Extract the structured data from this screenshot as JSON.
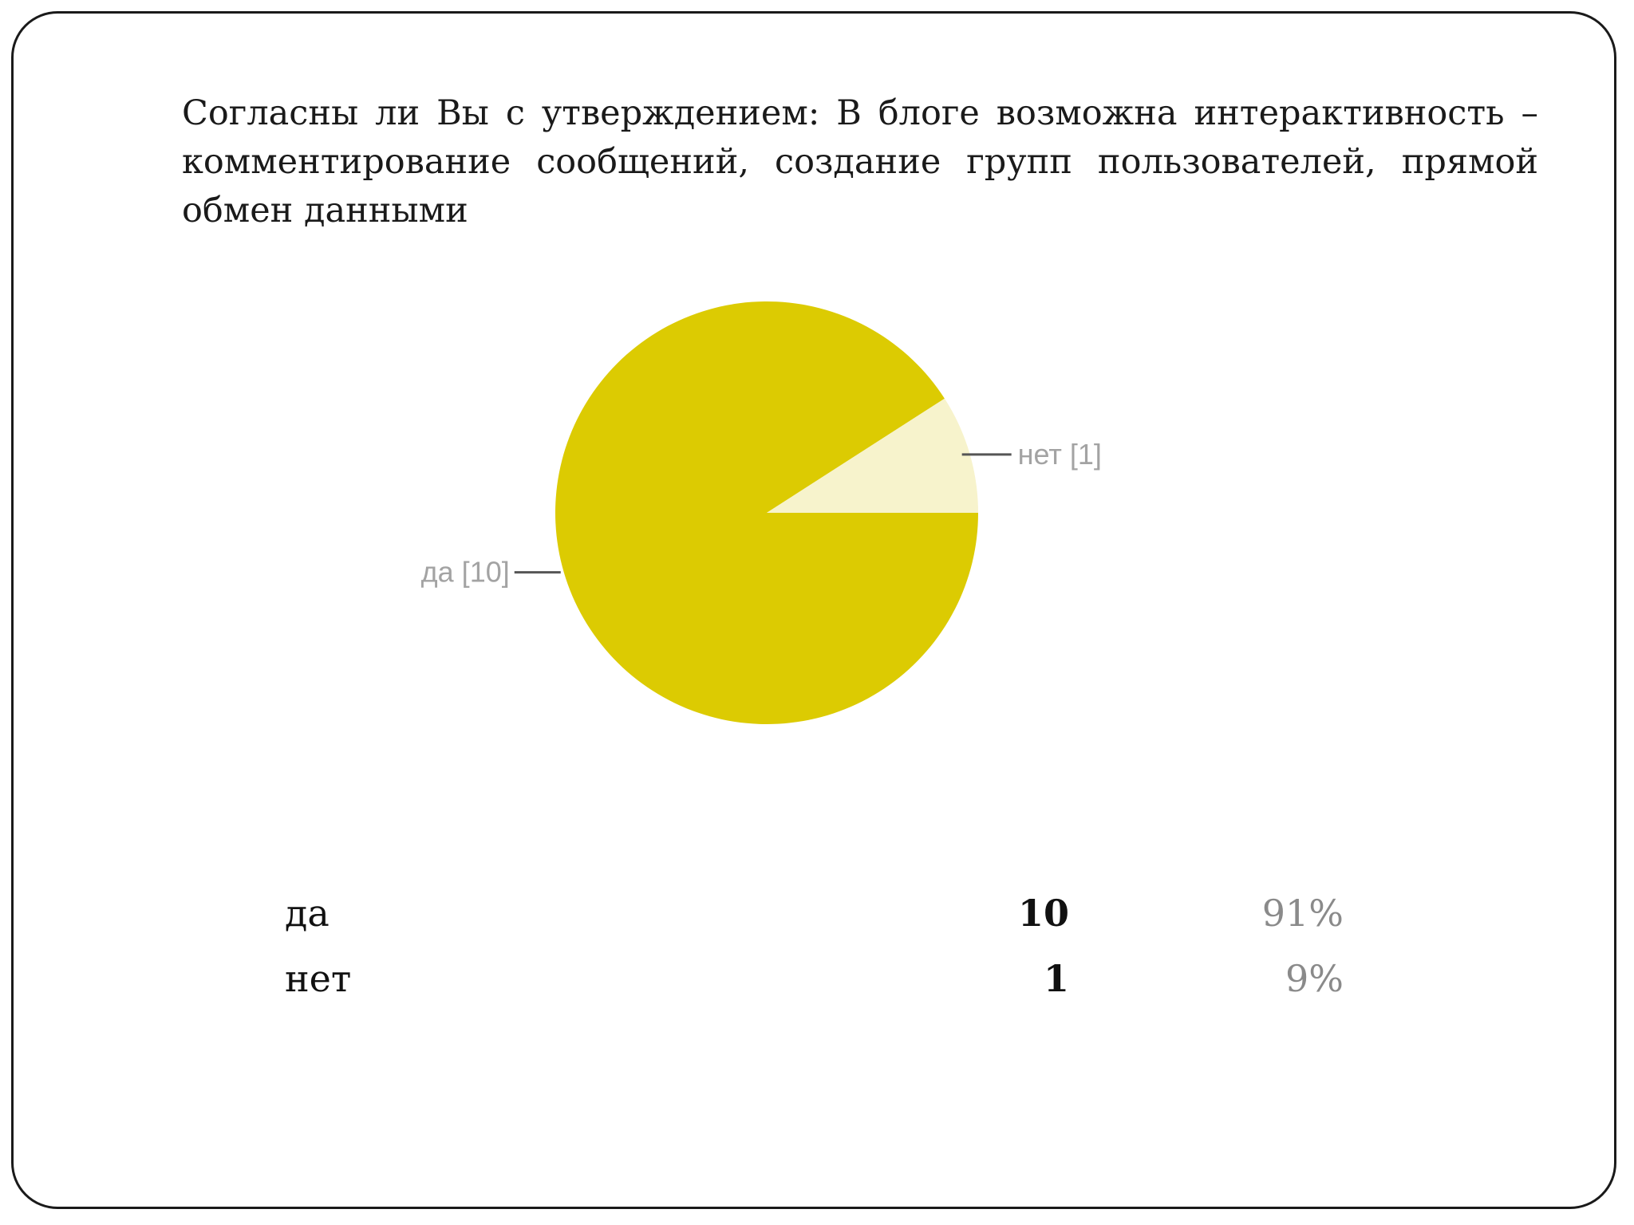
{
  "question": "Согласны ли Вы с утверждением: В блоге возможна интерактивность – комментирование сообщений, создание групп пользователей, прямой обмен данными",
  "chart_data": {
    "type": "pie",
    "categories": [
      "да",
      "нет"
    ],
    "values": [
      10,
      1
    ],
    "slice_labels": [
      "да [10]",
      "нет [1]"
    ],
    "colors": [
      "#dccb02",
      "#f7f3cc"
    ],
    "legend": "none"
  },
  "summary": [
    {
      "label": "да",
      "count": "10",
      "percent": "91%"
    },
    {
      "label": "нет",
      "count": "1",
      "percent": "9%"
    }
  ]
}
